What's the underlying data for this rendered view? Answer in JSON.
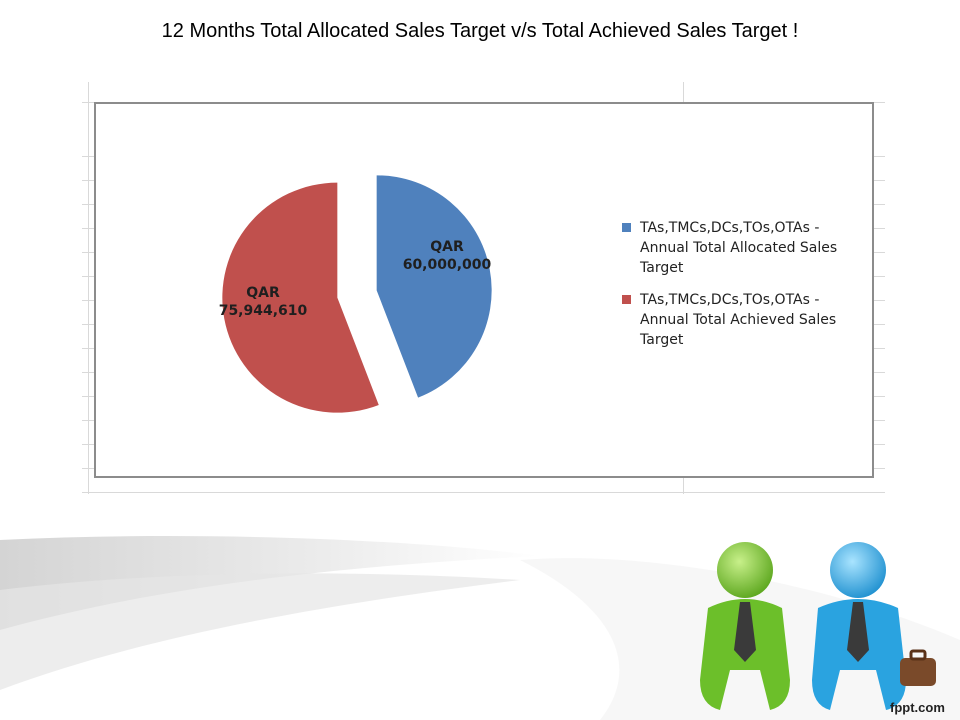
{
  "slide": {
    "title": "12 Months Total Allocated Sales Target v/s Total Achieved Sales Target !",
    "logo_text": "fppt.com"
  },
  "chart_data": {
    "type": "pie",
    "title": "",
    "slices": [
      {
        "name": "TAs,TMCs,DCs,TOs,OTAs - Annual Total Allocated Sales Target",
        "value": 60000000,
        "currency": "QAR",
        "value_label": "60,000,000",
        "color": "#4f81bd"
      },
      {
        "name": "TAs,TMCs,DCs,TOs,OTAs - Annual Total Achieved Sales Target",
        "value": 75944610,
        "currency": "QAR",
        "value_label": "75,944,610",
        "color": "#c0504d"
      }
    ],
    "legend_placement": "right",
    "exploded": true
  }
}
